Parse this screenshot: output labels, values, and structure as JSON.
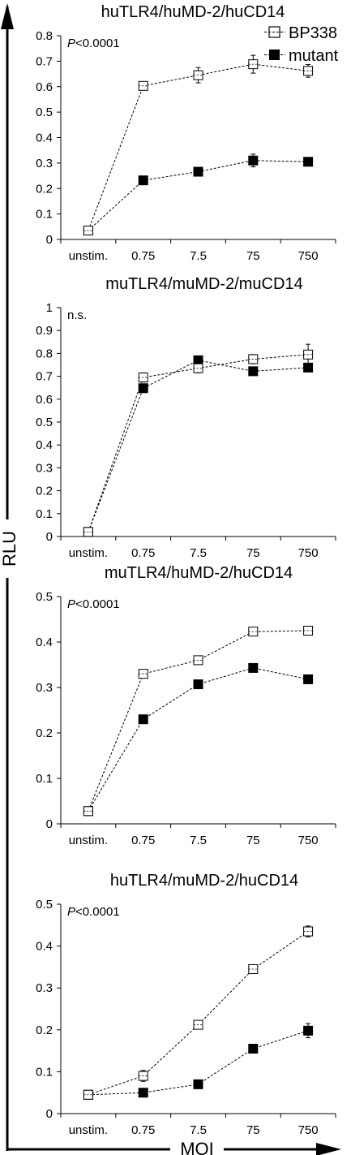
{
  "figure": {
    "y_label": "RLU",
    "x_label": "MOI",
    "legend": [
      {
        "name": "BP338",
        "marker": "open-square"
      },
      {
        "name": "mutant",
        "marker": "filled-square"
      }
    ]
  },
  "chart_data": [
    {
      "type": "line",
      "title": "huTLR4/huMD-2/huCD14",
      "annotation_prefix": "P",
      "annotation_suffix": "<0.0001",
      "categories": [
        "unstim.",
        "0.75",
        "7.5",
        "75",
        "750"
      ],
      "ylim": [
        0,
        0.8
      ],
      "yticks": [
        "0",
        "0.1",
        "0.2",
        "0.3",
        "0.4",
        "0.5",
        "0.6",
        "0.7",
        "0.8"
      ],
      "series": [
        {
          "name": "BP338",
          "marker": "open",
          "values": [
            0.035,
            0.603,
            0.645,
            0.688,
            0.662
          ],
          "errors": [
            0.0,
            0.01,
            0.03,
            0.035,
            0.025
          ]
        },
        {
          "name": "mutant",
          "marker": "filled",
          "values": [
            0.035,
            0.232,
            0.266,
            0.31,
            0.305
          ],
          "errors": [
            0.0,
            0.01,
            0.01,
            0.025,
            0.01
          ]
        }
      ]
    },
    {
      "type": "line",
      "title": "muTLR4/muMD-2/muCD14",
      "annotation_prefix": "",
      "annotation_suffix": "n.s.",
      "categories": [
        "unstim.",
        "0.75",
        "7.5",
        "75",
        "750"
      ],
      "ylim": [
        0,
        1
      ],
      "yticks": [
        "0",
        "0.1",
        "0.2",
        "0.3",
        "0.4",
        "0.5",
        "0.6",
        "0.7",
        "0.8",
        "0.9",
        "1"
      ],
      "series": [
        {
          "name": "BP338",
          "marker": "open",
          "values": [
            0.02,
            0.695,
            0.735,
            0.775,
            0.795
          ],
          "errors": [
            0.0,
            0.02,
            0.02,
            0.02,
            0.045
          ]
        },
        {
          "name": "mutant",
          "marker": "filled",
          "values": [
            0.02,
            0.648,
            0.77,
            0.722,
            0.738
          ],
          "errors": [
            0.0,
            0.015,
            0.01,
            0.01,
            0.01
          ]
        }
      ]
    },
    {
      "type": "line",
      "title": "muTLR4/huMD-2/huCD14",
      "annotation_prefix": "P",
      "annotation_suffix": "<0.0001",
      "categories": [
        "unstim.",
        "0.75",
        "7.5",
        "75",
        "750"
      ],
      "ylim": [
        0,
        0.5
      ],
      "yticks": [
        "0",
        "0.1",
        "0.2",
        "0.3",
        "0.4",
        "0.5"
      ],
      "series": [
        {
          "name": "BP338",
          "marker": "open",
          "values": [
            0.028,
            0.33,
            0.36,
            0.423,
            0.425
          ],
          "errors": [
            0.0,
            0.008,
            0.006,
            0.006,
            0.005
          ]
        },
        {
          "name": "mutant",
          "marker": "filled",
          "values": [
            0.028,
            0.23,
            0.307,
            0.343,
            0.318
          ],
          "errors": [
            0.0,
            0.005,
            0.005,
            0.005,
            0.005
          ]
        }
      ]
    },
    {
      "type": "line",
      "title": "huTLR4/muMD-2/huCD14",
      "annotation_prefix": "P",
      "annotation_suffix": "<0.0001",
      "categories": [
        "unstim.",
        "0.75",
        "7.5",
        "75",
        "750"
      ],
      "ylim": [
        0,
        0.5
      ],
      "yticks": [
        "0",
        "0.1",
        "0.2",
        "0.3",
        "0.4",
        "0.5"
      ],
      "series": [
        {
          "name": "BP338",
          "marker": "open",
          "values": [
            0.045,
            0.09,
            0.212,
            0.345,
            0.435
          ],
          "errors": [
            0.0,
            0.013,
            0.008,
            0.007,
            0.013
          ]
        },
        {
          "name": "mutant",
          "marker": "filled",
          "values": [
            0.045,
            0.05,
            0.07,
            0.155,
            0.198
          ],
          "errors": [
            0.0,
            0.004,
            0.004,
            0.005,
            0.017
          ]
        }
      ]
    }
  ]
}
